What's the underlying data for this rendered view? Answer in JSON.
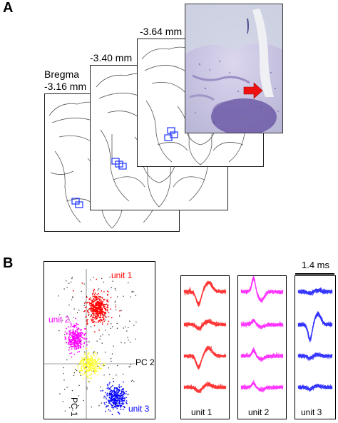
{
  "panel_a": {
    "letter": "A",
    "bregma_label": "Bregma",
    "sections": [
      "-3.16 mm",
      "-3.40 mm",
      "-3.64 mm"
    ]
  },
  "panel_b": {
    "letter": "B",
    "pca": {
      "axis_labels": [
        "PC 2",
        "PC 1"
      ],
      "clusters": [
        {
          "name": "unit 1",
          "color": "#ff0000"
        },
        {
          "name": "unit 2",
          "color": "#ff00ff"
        },
        {
          "name": "unit 3",
          "color": "#0000ff"
        },
        {
          "name": "",
          "color": "#ffff33"
        }
      ]
    },
    "waveforms": {
      "scale_bar": "1.4 ms",
      "columns": [
        {
          "label": "unit 1",
          "color": "#ff0000"
        },
        {
          "label": "unit 2",
          "color": "#ff00ff"
        },
        {
          "label": "unit 3",
          "color": "#0000ff"
        }
      ]
    }
  }
}
